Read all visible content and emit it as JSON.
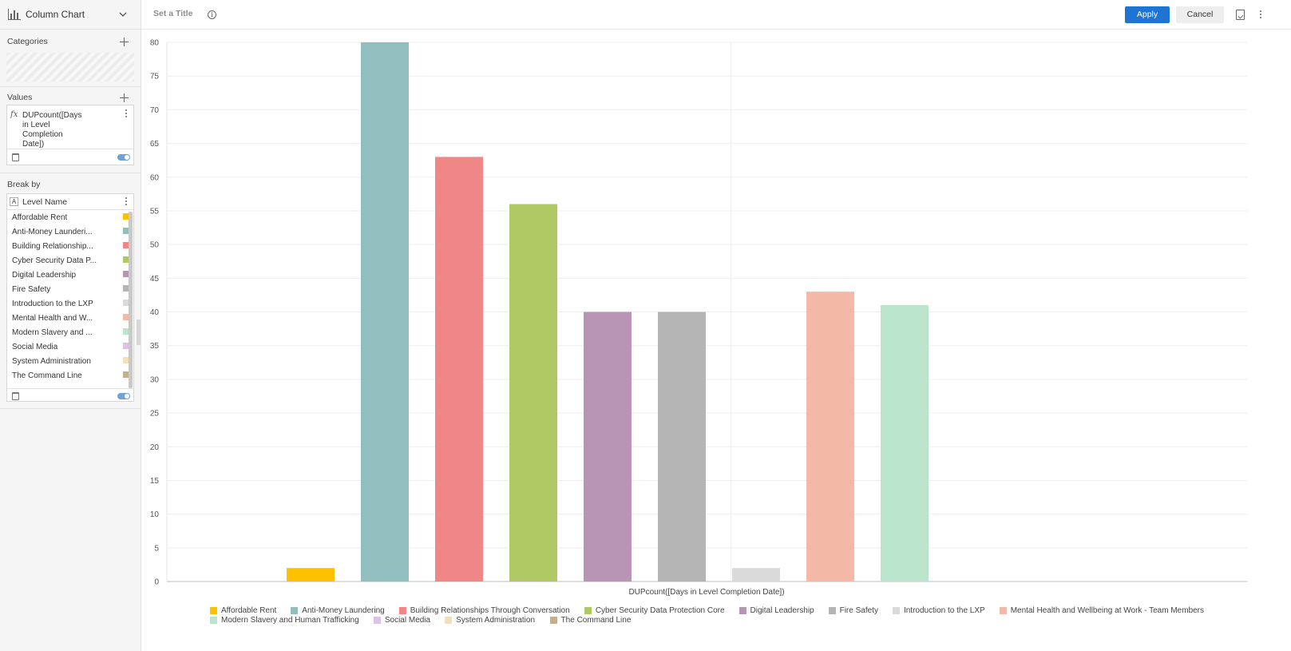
{
  "sidebar": {
    "chart_type": "Column Chart",
    "categories_title": "Categories",
    "values_title": "Values",
    "value_expression": "DUPcount([Days in Level Completion Date])",
    "break_by_title": "Break by",
    "break_by_field": "Level Name",
    "break_items": [
      {
        "label": "Affordable Rent",
        "color": "#ffc000"
      },
      {
        "label": "Anti-Money Launderi...",
        "color": "#93bec0"
      },
      {
        "label": "Building Relationship...",
        "color": "#ee8786"
      },
      {
        "label": "Cyber Security Data P...",
        "color": "#b0c964"
      },
      {
        "label": "Digital Leadership",
        "color": "#b895b5"
      },
      {
        "label": "Fire Safety",
        "color": "#b5b5b5"
      },
      {
        "label": "Introduction to the LXP",
        "color": "#dadada"
      },
      {
        "label": "Mental Health and W...",
        "color": "#f4b9a6"
      },
      {
        "label": "Modern Slavery and ...",
        "color": "#bae4cb"
      },
      {
        "label": "Social Media",
        "color": "#dcc2e4"
      },
      {
        "label": "System Administration",
        "color": "#f3e0b8"
      },
      {
        "label": "The Command Line",
        "color": "#c5b08c"
      }
    ]
  },
  "toolbar": {
    "title_placeholder": "Set a Title",
    "apply_label": "Apply",
    "cancel_label": "Cancel"
  },
  "chart_data": {
    "type": "bar",
    "title": "",
    "xlabel": "DUPcount([Days in Level Completion Date])",
    "ylabel": "",
    "ylim": [
      0,
      80
    ],
    "yticks": [
      0,
      5,
      10,
      15,
      20,
      25,
      30,
      35,
      40,
      45,
      50,
      55,
      60,
      65,
      70,
      75,
      80
    ],
    "grid": true,
    "legend_position": "bottom",
    "series": [
      {
        "name": "Affordable Rent",
        "value": 2,
        "color": "#ffc000"
      },
      {
        "name": "Anti-Money Laundering",
        "value": 80,
        "color": "#93bec0"
      },
      {
        "name": "Building Relationships Through Conversation",
        "value": 63,
        "color": "#ee8786"
      },
      {
        "name": "Cyber Security Data Protection Core",
        "value": 56,
        "color": "#b0c964"
      },
      {
        "name": "Digital Leadership",
        "value": 40,
        "color": "#b895b5"
      },
      {
        "name": "Fire Safety",
        "value": 40,
        "color": "#b5b5b5"
      },
      {
        "name": "Introduction to the LXP",
        "value": 2,
        "color": "#dadada"
      },
      {
        "name": "Mental Health and Wellbeing at Work - Team Members",
        "value": 43,
        "color": "#f4b9a6"
      },
      {
        "name": "Modern Slavery and Human Trafficking",
        "value": 41,
        "color": "#bae4cb"
      },
      {
        "name": "Social Media",
        "value": 0,
        "color": "#dcc2e4"
      },
      {
        "name": "System Administration",
        "value": 0,
        "color": "#f3e0b8"
      },
      {
        "name": "The Command Line",
        "value": 0,
        "color": "#c5b08c"
      }
    ]
  }
}
